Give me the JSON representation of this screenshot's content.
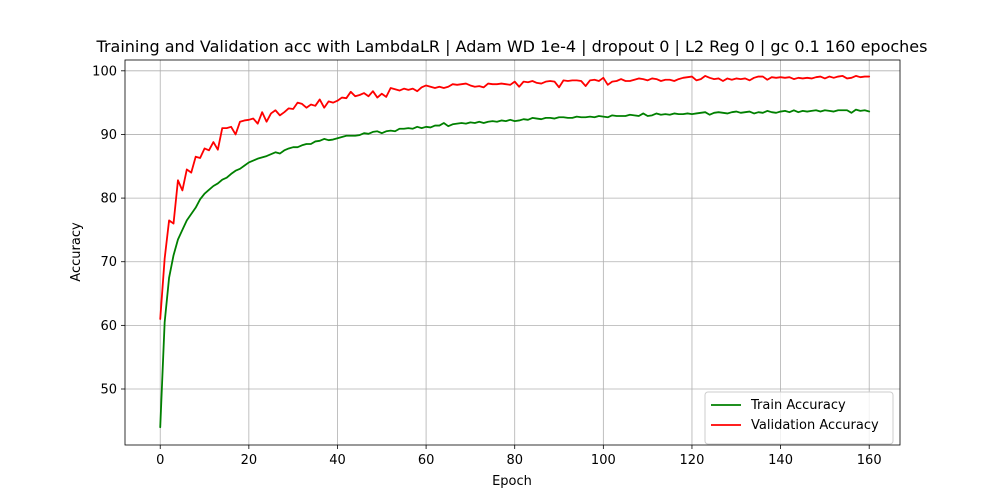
{
  "chart_data": {
    "type": "line",
    "title": "Training and Validation acc with LambdaLR | Adam WD 1e-4 | dropout 0 | L2 Reg 0 | gc 0.1 160 epoches",
    "xlabel": "Epoch",
    "ylabel": "Accuracy",
    "xlim": [
      -7.95,
      166.95
    ],
    "ylim": [
      41.2,
      101.7
    ],
    "xticks": [
      0,
      20,
      40,
      60,
      80,
      100,
      120,
      140,
      160
    ],
    "yticks": [
      50,
      60,
      70,
      80,
      90,
      100
    ],
    "grid": true,
    "legend_position": "bottom-right",
    "series": [
      {
        "name": "Train Accuracy",
        "color": "#008000",
        "y": [
          44.0,
          60.5,
          67.5,
          71.0,
          73.5,
          75.0,
          76.5,
          77.5,
          78.5,
          79.8,
          80.7,
          81.3,
          81.9,
          82.3,
          82.9,
          83.2,
          83.8,
          84.3,
          84.6,
          85.1,
          85.6,
          85.9,
          86.2,
          86.4,
          86.6,
          86.9,
          87.2,
          87.0,
          87.5,
          87.8,
          88.0,
          88.0,
          88.3,
          88.5,
          88.5,
          88.9,
          89.0,
          89.3,
          89.1,
          89.2,
          89.4,
          89.6,
          89.8,
          89.8,
          89.8,
          89.9,
          90.2,
          90.1,
          90.4,
          90.5,
          90.2,
          90.5,
          90.6,
          90.5,
          90.9,
          90.9,
          91.0,
          90.9,
          91.2,
          91.0,
          91.2,
          91.1,
          91.4,
          91.4,
          91.8,
          91.3,
          91.6,
          91.7,
          91.8,
          91.7,
          91.9,
          91.8,
          92.0,
          91.8,
          92.0,
          92.1,
          92.0,
          92.2,
          92.1,
          92.3,
          92.1,
          92.2,
          92.4,
          92.3,
          92.6,
          92.5,
          92.4,
          92.6,
          92.6,
          92.5,
          92.7,
          92.7,
          92.6,
          92.6,
          92.8,
          92.7,
          92.7,
          92.8,
          92.7,
          92.9,
          92.8,
          92.7,
          93.0,
          92.9,
          92.9,
          92.9,
          93.1,
          93.0,
          92.9,
          93.3,
          92.9,
          93.0,
          93.3,
          93.1,
          93.2,
          93.1,
          93.3,
          93.2,
          93.2,
          93.3,
          93.2,
          93.3,
          93.4,
          93.5,
          93.1,
          93.4,
          93.5,
          93.4,
          93.3,
          93.5,
          93.6,
          93.4,
          93.5,
          93.6,
          93.3,
          93.5,
          93.4,
          93.7,
          93.5,
          93.4,
          93.6,
          93.7,
          93.5,
          93.8,
          93.5,
          93.7,
          93.6,
          93.7,
          93.8,
          93.6,
          93.8,
          93.7,
          93.6,
          93.8,
          93.8,
          93.8,
          93.4,
          93.9,
          93.7,
          93.8,
          93.6
        ]
      },
      {
        "name": "Validation Accuracy",
        "color": "#ff0000",
        "y": [
          61.0,
          70.5,
          76.5,
          76.0,
          82.8,
          81.2,
          84.5,
          84.0,
          86.5,
          86.3,
          87.8,
          87.5,
          88.8,
          87.6,
          91.0,
          91.0,
          91.2,
          90.0,
          92.0,
          92.2,
          92.3,
          92.5,
          91.7,
          93.5,
          92.0,
          93.3,
          93.8,
          93.0,
          93.5,
          94.1,
          94.0,
          95.0,
          94.8,
          94.2,
          94.7,
          94.5,
          95.5,
          94.2,
          95.2,
          95.0,
          95.3,
          95.8,
          95.7,
          96.7,
          96.0,
          96.2,
          96.5,
          96.0,
          96.8,
          95.8,
          96.4,
          95.9,
          97.3,
          97.1,
          96.9,
          97.2,
          97.0,
          97.2,
          96.8,
          97.4,
          97.7,
          97.5,
          97.3,
          97.5,
          97.3,
          97.5,
          97.9,
          97.8,
          97.9,
          98.0,
          97.7,
          97.5,
          97.6,
          97.4,
          98.0,
          97.9,
          97.9,
          98.0,
          97.9,
          97.8,
          98.3,
          97.5,
          98.3,
          98.2,
          98.4,
          98.1,
          98.0,
          98.3,
          98.4,
          98.3,
          97.4,
          98.5,
          98.4,
          98.5,
          98.5,
          98.4,
          97.6,
          98.5,
          98.6,
          98.4,
          98.9,
          97.8,
          98.3,
          98.4,
          98.7,
          98.4,
          98.4,
          98.6,
          98.8,
          98.7,
          98.5,
          98.8,
          98.7,
          98.4,
          98.6,
          98.6,
          98.4,
          98.7,
          98.9,
          99.0,
          99.1,
          98.5,
          98.7,
          99.2,
          98.9,
          98.7,
          98.8,
          98.4,
          98.8,
          98.6,
          98.8,
          98.7,
          98.8,
          98.5,
          98.9,
          99.1,
          99.1,
          98.6,
          99.0,
          98.9,
          99.0,
          98.9,
          99.0,
          98.7,
          98.9,
          98.8,
          98.9,
          98.8,
          99.0,
          99.1,
          98.8,
          99.1,
          98.9,
          99.1,
          99.2,
          98.8,
          98.9,
          99.2,
          99.0,
          99.1,
          99.1
        ]
      }
    ]
  }
}
